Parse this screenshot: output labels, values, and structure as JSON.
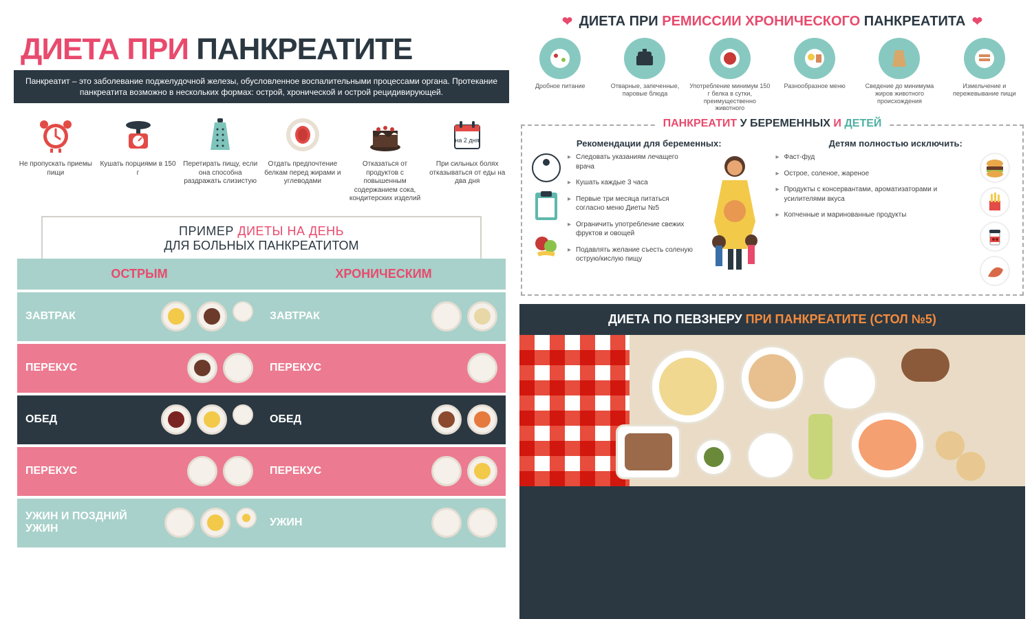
{
  "colors": {
    "pink": "#e84a6d",
    "teal": "#a7d1ca",
    "dark": "#2b3842",
    "orange": "#f58b3c",
    "salmon": "#ec7a90",
    "red": "#e24b46"
  },
  "left": {
    "title_pink": "ДИЕТА ПРИ",
    "title_dark": "ПАНКРЕАТИТЕ",
    "intro": "Панкреатит – это заболевание поджелудочной железы, обусловленное воспалительными процессами органа. Протекание панкреатита возможно в нескольких формах: острой, хронической и острой рецидивирующей.",
    "tips": [
      {
        "icon": "clock",
        "label": "Не пропускать приемы пищи"
      },
      {
        "icon": "scale",
        "label": "Кушать порциями в 150 г"
      },
      {
        "icon": "grater",
        "label": "Перетирать пищу, если она способна раздражать слизистую"
      },
      {
        "icon": "plate",
        "label": "Отдать предпочтение белкам перед жирами и углеводами"
      },
      {
        "icon": "cake",
        "label": "Отказаться от продуктов с повышенным содержанием сока, кондитерских изделий"
      },
      {
        "icon": "calendar",
        "label": "При сильных болях отказываться от еды на два дня"
      }
    ],
    "example": {
      "l1a": "ПРИМЕР",
      "l1b": "ДИЕТЫ НА ДЕНЬ",
      "l2": "ДЛЯ БОЛЬНЫХ ПАНКРЕАТИТОМ"
    },
    "cols": [
      "ОСТРЫМ",
      "ХРОНИЧЕСКИМ"
    ],
    "meals_acute": [
      {
        "label": "ЗАВТРАК",
        "plates": 3,
        "foods": [
          "#f3c94a",
          "#6b3a2a",
          ""
        ]
      },
      {
        "label": "ПЕРЕКУС",
        "plates": 2,
        "foods": [
          "#6b3a2a",
          ""
        ]
      },
      {
        "label": "ОБЕД",
        "plates": 3,
        "foods": [
          "#7a2323",
          "#f3c94a",
          ""
        ]
      },
      {
        "label": "ПЕРЕКУС",
        "plates": 2,
        "foods": [
          "",
          ""
        ]
      },
      {
        "label": "УЖИН И ПОЗДНИЙ УЖИН",
        "plates": 3,
        "foods": [
          "",
          "#f3c94a",
          "#f3c94a"
        ]
      }
    ],
    "meals_chronic": [
      {
        "label": "ЗАВТРАК",
        "plates": 2,
        "foods": [
          "",
          "#e8d8a8"
        ]
      },
      {
        "label": "ПЕРЕКУС",
        "plates": 1,
        "foods": [
          ""
        ]
      },
      {
        "label": "ОБЕД",
        "plates": 2,
        "foods": [
          "#8b4a2e",
          "#e67a3c"
        ]
      },
      {
        "label": "ПЕРЕКУС",
        "plates": 2,
        "foods": [
          "",
          "#f3c94a"
        ]
      },
      {
        "label": "УЖИН",
        "plates": 2,
        "foods": [
          "",
          ""
        ]
      }
    ]
  },
  "right": {
    "rem_title_a": "ДИЕТА ПРИ",
    "rem_title_b": "РЕМИССИИ ХРОНИЧЕСКОГО",
    "rem_title_c": "ПАНКРЕАТИТА",
    "rem_items": [
      {
        "label": "Дробное питание"
      },
      {
        "label": "Отварные, запеченные, паровые блюда"
      },
      {
        "label": "Употребление минимум 150 г белка в сутки, преимущественно животного"
      },
      {
        "label": "Разнообразное меню"
      },
      {
        "label": "Сведение до минимума жиров животного происхождения"
      },
      {
        "label": "Измельчение и пережевывание пищи"
      }
    ],
    "preg": {
      "t1": "ПАНКРЕАТИТ",
      "t2": "У БЕРЕМЕННЫХ",
      "t3": "И",
      "t4": "ДЕТЕЙ",
      "h_left": "Рекомендации для беременных:",
      "h_right": "Детям полностью исключить:",
      "left_items": [
        "Следовать указаниям лечащего врача",
        "Кушать каждые 3 часа",
        "Первые три месяца питаться согласно меню Диеты №5",
        "Ограничить употребление свежих фруктов и овощей",
        "Подавлять желание съесть соленую острую/кислую пищу"
      ],
      "right_items": [
        "Фаст-фуд",
        "Острое, соленое, жареное",
        "Продукты с консервантами, ароматизаторами и усилителями вкуса",
        "Копченные и маринованные продукты"
      ]
    },
    "pevzner": {
      "a": "ДИЕТА ПО ПЕВЗНЕРУ",
      "b": "ПРИ ПАНКРЕАТИТЕ",
      "c": "(СТОЛ №5)"
    }
  }
}
